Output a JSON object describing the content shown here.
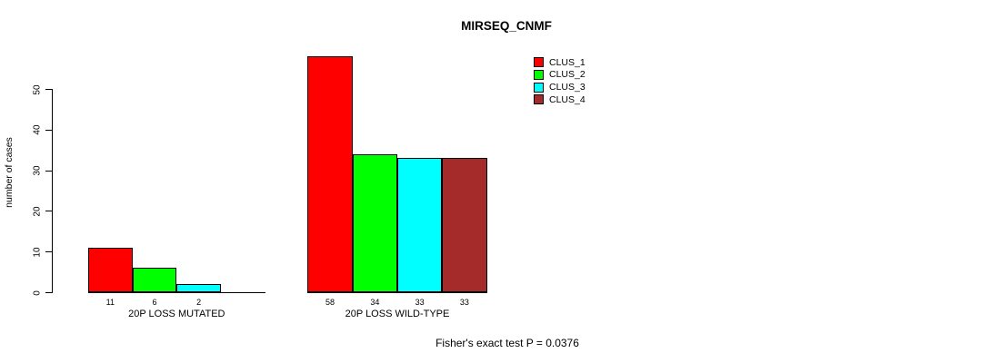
{
  "title": "MIRSEQ_CNMF",
  "y_axis": {
    "label": "number of cases"
  },
  "footer": "Fisher's exact test P = 0.0376",
  "legend": {
    "items": [
      {
        "label": "CLUS_1",
        "color": "#ff0000"
      },
      {
        "label": "CLUS_2",
        "color": "#00ff00"
      },
      {
        "label": "CLUS_3",
        "color": "#00ffff"
      },
      {
        "label": "CLUS_4",
        "color": "#a52a2a"
      }
    ]
  },
  "chart_data": {
    "type": "bar",
    "title": "MIRSEQ_CNMF",
    "ylabel": "number of cases",
    "xlabel": "",
    "ylim": [
      0,
      58
    ],
    "yticks": [
      0,
      10,
      20,
      30,
      40,
      50
    ],
    "grid": false,
    "legend_position": "top-right",
    "categories": [
      "20P LOSS MUTATED",
      "20P LOSS WILD-TYPE"
    ],
    "series": [
      {
        "name": "CLUS_1",
        "color": "#ff0000",
        "values": [
          11,
          58
        ]
      },
      {
        "name": "CLUS_2",
        "color": "#00ff00",
        "values": [
          6,
          34
        ]
      },
      {
        "name": "CLUS_3",
        "color": "#00ffff",
        "values": [
          2,
          33
        ]
      },
      {
        "name": "CLUS_4",
        "color": "#a52a2a",
        "values": [
          0,
          33
        ]
      }
    ],
    "bar_value_labels_shown": true,
    "zero_value_bars_unlabeled": true,
    "annotation": "Fisher's exact test P = 0.0376"
  }
}
